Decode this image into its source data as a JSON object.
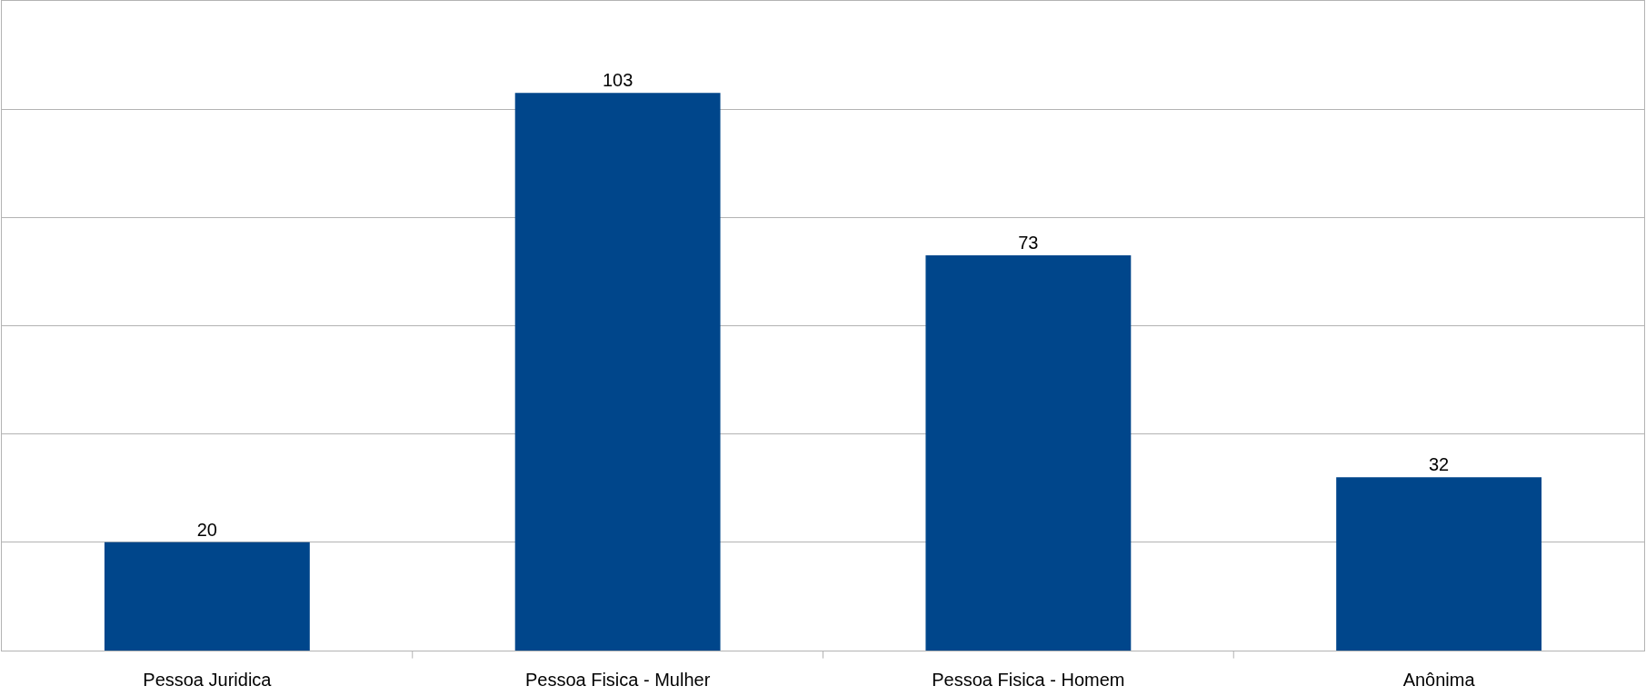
{
  "chart_data": {
    "type": "bar",
    "categories": [
      "Pessoa Juridica",
      "Pessoa Fisica - Mulher",
      "Pessoa Fisica - Homem",
      "Anônima"
    ],
    "values": [
      20,
      103,
      73,
      32
    ],
    "color": "#00468b",
    "data_labels": true,
    "grid": "y",
    "tick_labels": "x",
    "ylim": [
      0,
      120
    ],
    "yticks": [
      {
        "value": 0,
        "label": null
      },
      {
        "value": 20,
        "label": null
      },
      {
        "value": 40,
        "label": null
      },
      {
        "value": 60,
        "label": null
      },
      {
        "value": 80,
        "label": null
      },
      {
        "value": 100,
        "label": null
      },
      {
        "value": 120,
        "label": null
      }
    ]
  }
}
